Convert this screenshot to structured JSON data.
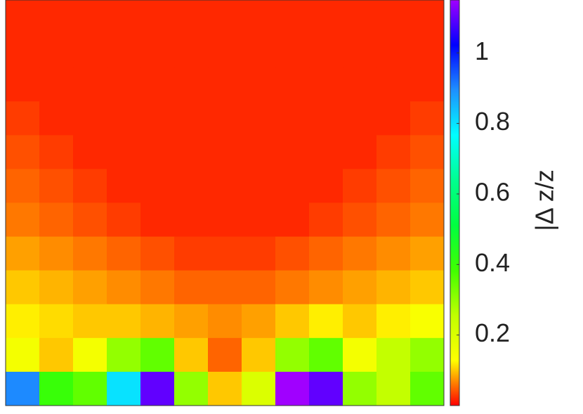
{
  "chart_data": {
    "type": "heatmap",
    "values": [
      [
        0.02,
        0.02,
        0.02,
        0.02,
        0.02,
        0.02,
        0.02,
        0.02,
        0.02,
        0.02,
        0.02,
        0.02,
        0.02
      ],
      [
        0.02,
        0.02,
        0.02,
        0.02,
        0.02,
        0.02,
        0.02,
        0.02,
        0.02,
        0.02,
        0.02,
        0.02,
        0.02
      ],
      [
        0.02,
        0.02,
        0.02,
        0.02,
        0.02,
        0.02,
        0.02,
        0.02,
        0.02,
        0.02,
        0.02,
        0.02,
        0.02
      ],
      [
        0.03,
        0.02,
        0.02,
        0.02,
        0.02,
        0.02,
        0.02,
        0.02,
        0.02,
        0.02,
        0.02,
        0.02,
        0.03
      ],
      [
        0.04,
        0.03,
        0.02,
        0.02,
        0.02,
        0.02,
        0.02,
        0.02,
        0.02,
        0.02,
        0.02,
        0.03,
        0.04
      ],
      [
        0.05,
        0.04,
        0.03,
        0.02,
        0.02,
        0.02,
        0.02,
        0.02,
        0.02,
        0.02,
        0.03,
        0.04,
        0.05
      ],
      [
        0.06,
        0.05,
        0.04,
        0.03,
        0.02,
        0.02,
        0.02,
        0.02,
        0.02,
        0.03,
        0.04,
        0.05,
        0.06
      ],
      [
        0.08,
        0.07,
        0.06,
        0.05,
        0.04,
        0.03,
        0.03,
        0.03,
        0.04,
        0.05,
        0.06,
        0.07,
        0.08
      ],
      [
        0.1,
        0.09,
        0.08,
        0.07,
        0.06,
        0.05,
        0.05,
        0.05,
        0.06,
        0.07,
        0.08,
        0.09,
        0.1
      ],
      [
        0.12,
        0.11,
        0.1,
        0.1,
        0.09,
        0.08,
        0.07,
        0.08,
        0.1,
        0.12,
        0.1,
        0.12,
        0.14
      ],
      [
        0.15,
        0.1,
        0.15,
        0.3,
        0.35,
        0.1,
        0.05,
        0.1,
        0.3,
        0.35,
        0.15,
        0.25,
        0.3
      ],
      [
        0.9,
        0.4,
        0.35,
        0.8,
        1.1,
        0.3,
        0.1,
        0.2,
        1.15,
        1.1,
        0.3,
        0.25,
        0.35
      ]
    ],
    "clim": [
      0,
      1.15
    ],
    "colorbar_ticks": [
      0.2,
      0.4,
      0.6,
      0.8,
      1
    ],
    "colorbar_label": "|Δ z/z",
    "colormap": [
      "#ff0000",
      "#ffff00",
      "#c0ff00",
      "#40ff00",
      "#00ff40",
      "#00ff90",
      "#00ffff",
      "#1e90ff",
      "#0000ff",
      "#a000ff"
    ]
  }
}
